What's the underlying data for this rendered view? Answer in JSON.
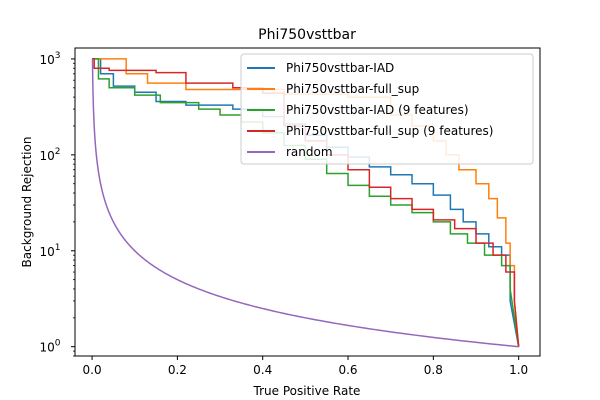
{
  "chart_data": {
    "type": "line",
    "title": "Phi750vsttbar",
    "xlabel": "True Positive Rate",
    "ylabel": "Background Rejection",
    "xlim": [
      -0.04,
      1.05
    ],
    "ylim": [
      0.8,
      1300
    ],
    "yscale": "log",
    "grid": false,
    "legend_position": "top-right",
    "x_ticks": [
      {
        "value": 0.0,
        "label": "0.0"
      },
      {
        "value": 0.2,
        "label": "0.2"
      },
      {
        "value": 0.4,
        "label": "0.4"
      },
      {
        "value": 0.6,
        "label": "0.6"
      },
      {
        "value": 0.8,
        "label": "0.8"
      },
      {
        "value": 1.0,
        "label": "1.0"
      }
    ],
    "y_ticks": [
      {
        "value": 1,
        "base": "10",
        "exp": "0"
      },
      {
        "value": 10,
        "base": "10",
        "exp": "1"
      },
      {
        "value": 100,
        "base": "10",
        "exp": "2"
      },
      {
        "value": 1000,
        "base": "10",
        "exp": "3"
      }
    ],
    "series": [
      {
        "name": "Phi750vsttbar-IAD",
        "color": "#1f77b4",
        "step": true,
        "points": [
          [
            0.0,
            1000
          ],
          [
            0.02,
            1000
          ],
          [
            0.02,
            700
          ],
          [
            0.05,
            700
          ],
          [
            0.05,
            520
          ],
          [
            0.1,
            520
          ],
          [
            0.1,
            450
          ],
          [
            0.15,
            450
          ],
          [
            0.15,
            360
          ],
          [
            0.22,
            360
          ],
          [
            0.22,
            330
          ],
          [
            0.33,
            330
          ],
          [
            0.33,
            300
          ],
          [
            0.4,
            300
          ],
          [
            0.4,
            250
          ],
          [
            0.45,
            250
          ],
          [
            0.45,
            210
          ],
          [
            0.5,
            210
          ],
          [
            0.5,
            160
          ],
          [
            0.55,
            160
          ],
          [
            0.55,
            120
          ],
          [
            0.6,
            120
          ],
          [
            0.6,
            95
          ],
          [
            0.65,
            95
          ],
          [
            0.65,
            75
          ],
          [
            0.7,
            75
          ],
          [
            0.7,
            62
          ],
          [
            0.75,
            62
          ],
          [
            0.75,
            50
          ],
          [
            0.8,
            50
          ],
          [
            0.8,
            38
          ],
          [
            0.84,
            38
          ],
          [
            0.84,
            27
          ],
          [
            0.87,
            27
          ],
          [
            0.87,
            20
          ],
          [
            0.9,
            20
          ],
          [
            0.9,
            15
          ],
          [
            0.93,
            15
          ],
          [
            0.93,
            11
          ],
          [
            0.96,
            11
          ],
          [
            0.96,
            9
          ],
          [
            0.98,
            9
          ],
          [
            0.98,
            3
          ],
          [
            1.0,
            1
          ]
        ]
      },
      {
        "name": "Phi750vsttbar-full_sup",
        "color": "#ff7f0e",
        "step": true,
        "points": [
          [
            0.0,
            1000
          ],
          [
            0.08,
            1000
          ],
          [
            0.08,
            700
          ],
          [
            0.13,
            700
          ],
          [
            0.13,
            560
          ],
          [
            0.22,
            560
          ],
          [
            0.22,
            480
          ],
          [
            0.45,
            480
          ],
          [
            0.45,
            430
          ],
          [
            0.6,
            430
          ],
          [
            0.6,
            400
          ],
          [
            0.7,
            400
          ],
          [
            0.7,
            260
          ],
          [
            0.75,
            260
          ],
          [
            0.75,
            200
          ],
          [
            0.8,
            200
          ],
          [
            0.8,
            140
          ],
          [
            0.83,
            140
          ],
          [
            0.83,
            100
          ],
          [
            0.86,
            100
          ],
          [
            0.86,
            70
          ],
          [
            0.9,
            70
          ],
          [
            0.9,
            50
          ],
          [
            0.93,
            50
          ],
          [
            0.93,
            35
          ],
          [
            0.95,
            35
          ],
          [
            0.95,
            22
          ],
          [
            0.97,
            22
          ],
          [
            0.97,
            12
          ],
          [
            0.98,
            12
          ],
          [
            0.98,
            7
          ],
          [
            0.99,
            7
          ],
          [
            0.99,
            3
          ],
          [
            1.0,
            1
          ]
        ]
      },
      {
        "name": "Phi750vsttbar-IAD (9 features)",
        "color": "#2ca02c",
        "step": true,
        "points": [
          [
            0.0,
            1000
          ],
          [
            0.015,
            1000
          ],
          [
            0.015,
            620
          ],
          [
            0.04,
            620
          ],
          [
            0.04,
            500
          ],
          [
            0.1,
            500
          ],
          [
            0.1,
            420
          ],
          [
            0.16,
            420
          ],
          [
            0.16,
            350
          ],
          [
            0.25,
            350
          ],
          [
            0.25,
            300
          ],
          [
            0.3,
            300
          ],
          [
            0.3,
            260
          ],
          [
            0.35,
            260
          ],
          [
            0.35,
            220
          ],
          [
            0.4,
            220
          ],
          [
            0.4,
            170
          ],
          [
            0.45,
            170
          ],
          [
            0.45,
            125
          ],
          [
            0.5,
            125
          ],
          [
            0.5,
            90
          ],
          [
            0.55,
            90
          ],
          [
            0.55,
            64
          ],
          [
            0.6,
            64
          ],
          [
            0.6,
            48
          ],
          [
            0.65,
            48
          ],
          [
            0.65,
            37
          ],
          [
            0.7,
            37
          ],
          [
            0.7,
            30
          ],
          [
            0.75,
            30
          ],
          [
            0.75,
            25
          ],
          [
            0.8,
            25
          ],
          [
            0.8,
            20
          ],
          [
            0.84,
            20
          ],
          [
            0.84,
            15
          ],
          [
            0.88,
            15
          ],
          [
            0.88,
            12
          ],
          [
            0.92,
            12
          ],
          [
            0.92,
            9
          ],
          [
            0.96,
            9
          ],
          [
            0.96,
            7
          ],
          [
            0.98,
            7
          ],
          [
            0.98,
            4
          ],
          [
            1.0,
            1
          ]
        ]
      },
      {
        "name": "Phi750vsttbar-full_sup (9 features)",
        "color": "#d62728",
        "step": true,
        "points": [
          [
            0.0,
            1000
          ],
          [
            0.005,
            1000
          ],
          [
            0.005,
            800
          ],
          [
            0.04,
            800
          ],
          [
            0.04,
            760
          ],
          [
            0.15,
            760
          ],
          [
            0.15,
            720
          ],
          [
            0.22,
            720
          ],
          [
            0.22,
            560
          ],
          [
            0.33,
            560
          ],
          [
            0.33,
            500
          ],
          [
            0.4,
            500
          ],
          [
            0.4,
            440
          ],
          [
            0.45,
            440
          ],
          [
            0.45,
            200
          ],
          [
            0.5,
            200
          ],
          [
            0.5,
            140
          ],
          [
            0.55,
            140
          ],
          [
            0.55,
            100
          ],
          [
            0.6,
            100
          ],
          [
            0.6,
            70
          ],
          [
            0.65,
            70
          ],
          [
            0.65,
            46
          ],
          [
            0.7,
            46
          ],
          [
            0.7,
            35
          ],
          [
            0.75,
            35
          ],
          [
            0.75,
            27
          ],
          [
            0.8,
            27
          ],
          [
            0.8,
            21
          ],
          [
            0.85,
            21
          ],
          [
            0.85,
            17
          ],
          [
            0.9,
            17
          ],
          [
            0.9,
            12
          ],
          [
            0.94,
            12
          ],
          [
            0.94,
            9
          ],
          [
            0.97,
            9
          ],
          [
            0.97,
            6
          ],
          [
            0.99,
            6
          ],
          [
            0.99,
            3
          ],
          [
            1.0,
            1
          ]
        ]
      },
      {
        "name": "random",
        "color": "#9467bd",
        "step": false,
        "function": "1/x",
        "x_range": [
          0.001,
          1.0
        ]
      }
    ]
  }
}
